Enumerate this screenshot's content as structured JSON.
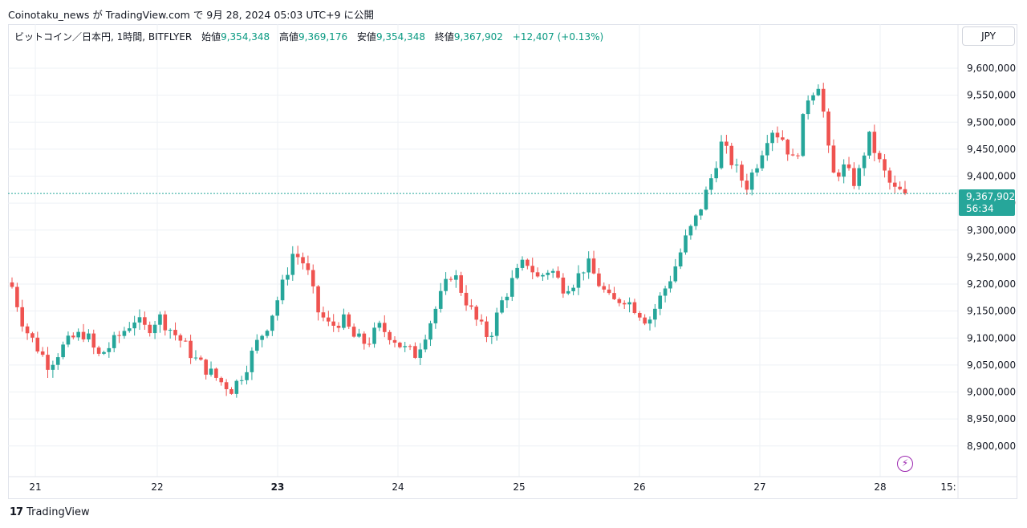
{
  "header": {
    "publish_line": "Coinotaku_news が TradingView.com で 9月 28, 2024 05:03 UTC+9 に公開"
  },
  "legend": {
    "symbol": "ビットコイン／日本円, 1時間, BITFLYER",
    "open_label": "始値",
    "open": "9,354,348",
    "high_label": "高値",
    "high": "9,369,176",
    "low_label": "安値",
    "low": "9,354,348",
    "close_label": "終値",
    "close": "9,367,902",
    "change": "+12,407 (+0.13%)"
  },
  "price_axis": {
    "currency_button": "JPY",
    "last_price": "9,367,902",
    "countdown": "56:34"
  },
  "footer": {
    "brand_logo": "17",
    "brand_name": "TradingView"
  },
  "colors": {
    "up": "#26a69a",
    "down": "#ef5350",
    "grid": "#eef1f5",
    "last_price_line": "#26a69a",
    "accent": "#9c27b0"
  },
  "icons": {
    "bolt": "lightning-bolt-icon",
    "logo": "tradingview-logo-icon"
  },
  "chart_data": {
    "type": "candlestick",
    "title": "ビットコイン／日本円, 1時間, BITFLYER",
    "x_tick_labels": [
      "21",
      "22",
      "23",
      "24",
      "25",
      "26",
      "27",
      "28",
      "15:"
    ],
    "y_tick_labels": [
      "8,900,000",
      "8,950,000",
      "9,000,000",
      "9,050,000",
      "9,100,000",
      "9,150,000",
      "9,200,000",
      "9,250,000",
      "9,300,000",
      "9,350,000",
      "9,400,000",
      "9,450,000",
      "9,500,000",
      "9,550,000",
      "9,600,000"
    ],
    "ylim": [
      8870000,
      9640000
    ],
    "last_price": 9367902,
    "grid": true,
    "anchors": [
      9195000,
      9120000,
      9085000,
      9050000,
      9080000,
      9100000,
      9110000,
      9065000,
      9085000,
      9110000,
      9135000,
      9115000,
      9140000,
      9115000,
      9090000,
      9060000,
      9040000,
      9020000,
      9005000,
      9040000,
      9090000,
      9130000,
      9190000,
      9260000,
      9235000,
      9150000,
      9120000,
      9135000,
      9100000,
      9090000,
      9120000,
      9105000,
      9080000,
      9070000,
      9120000,
      9175000,
      9225000,
      9175000,
      9130000,
      9100000,
      9165000,
      9210000,
      9245000,
      9210000,
      9230000,
      9195000,
      9205000,
      9240000,
      9200000,
      9165000,
      9175000,
      9155000,
      9130000,
      9175000,
      9220000,
      9280000,
      9325000,
      9385000,
      9460000,
      9420000,
      9380000,
      9430000,
      9490000,
      9470000,
      9420000,
      9545000,
      9575000,
      9400000,
      9415000,
      9385000,
      9475000,
      9420000,
      9375000,
      9368000
    ]
  }
}
